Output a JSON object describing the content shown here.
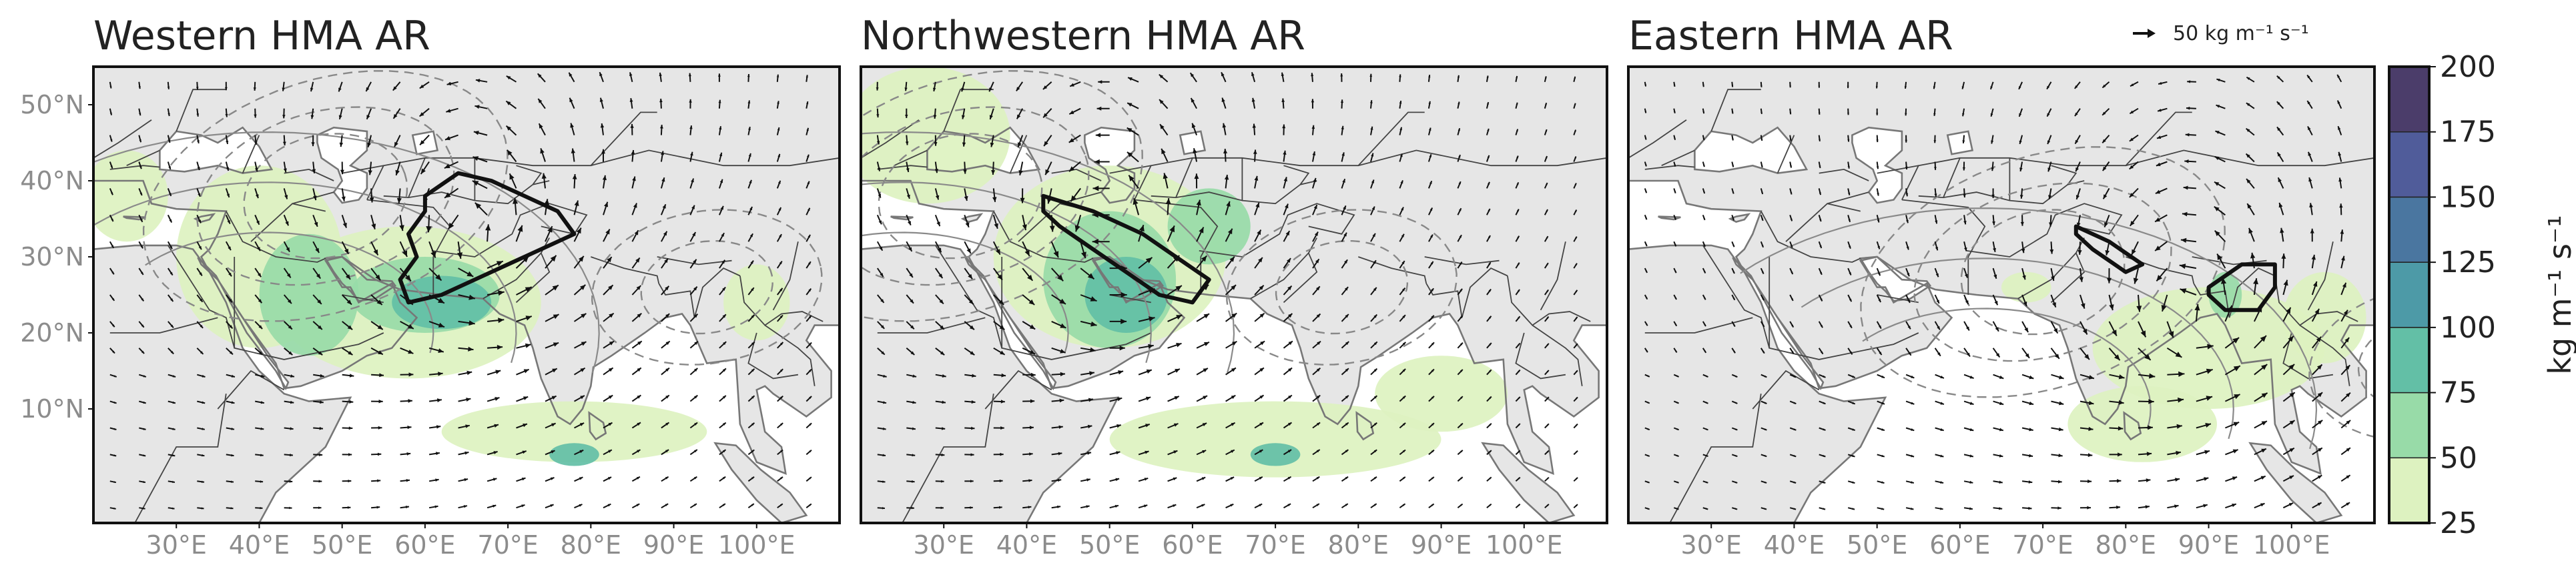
{
  "panels": [
    {
      "id": "western",
      "title": "Western HMA AR",
      "show_lat_labels": true,
      "ivt_blobs": [
        {
          "level": 25,
          "lon": 40,
          "lat": 30,
          "rx": 10,
          "ry": 12
        },
        {
          "level": 25,
          "lon": 58,
          "lat": 24,
          "rx": 16,
          "ry": 10
        },
        {
          "level": 25,
          "lon": 24,
          "lat": 38,
          "rx": 5,
          "ry": 6
        },
        {
          "level": 25,
          "lon": 78,
          "lat": 7,
          "rx": 16,
          "ry": 4
        },
        {
          "level": 25,
          "lon": 100,
          "lat": 24,
          "rx": 4,
          "ry": 5
        },
        {
          "level": 50,
          "lon": 46,
          "lat": 25,
          "rx": 6,
          "ry": 8
        },
        {
          "level": 50,
          "lon": 60,
          "lat": 25,
          "rx": 9,
          "ry": 5
        },
        {
          "level": 75,
          "lon": 62,
          "lat": 24,
          "rx": 6,
          "ry": 3.5
        },
        {
          "level": 75,
          "lon": 78,
          "lat": 4,
          "rx": 3,
          "ry": 1.5
        }
      ],
      "ar_outline": [
        [
          60,
          38
        ],
        [
          64,
          41
        ],
        [
          68,
          40
        ],
        [
          72,
          38
        ],
        [
          76,
          36
        ],
        [
          78,
          33
        ],
        [
          74,
          31
        ],
        [
          70,
          29
        ],
        [
          66,
          27
        ],
        [
          62,
          25
        ],
        [
          58,
          24
        ],
        [
          57,
          27
        ],
        [
          59,
          30
        ],
        [
          58,
          33
        ],
        [
          60,
          36
        ]
      ],
      "wind_center": [
        66,
        30
      ]
    },
    {
      "id": "northwestern",
      "title": "Northwestern HMA AR",
      "show_lat_labels": false,
      "ivt_blobs": [
        {
          "level": 25,
          "lon": 28,
          "lat": 46,
          "rx": 10,
          "ry": 9
        },
        {
          "level": 25,
          "lon": 50,
          "lat": 30,
          "rx": 14,
          "ry": 12
        },
        {
          "level": 25,
          "lon": 70,
          "lat": 6,
          "rx": 20,
          "ry": 5
        },
        {
          "level": 25,
          "lon": 90,
          "lat": 12,
          "rx": 8,
          "ry": 5
        },
        {
          "level": 50,
          "lon": 50,
          "lat": 27,
          "rx": 8,
          "ry": 9
        },
        {
          "level": 50,
          "lon": 62,
          "lat": 34,
          "rx": 5,
          "ry": 5
        },
        {
          "level": 75,
          "lon": 52,
          "lat": 25,
          "rx": 5,
          "ry": 5
        },
        {
          "level": 75,
          "lon": 70,
          "lat": 4,
          "rx": 3,
          "ry": 1.5
        }
      ],
      "ar_outline": [
        [
          42,
          38
        ],
        [
          48,
          36
        ],
        [
          54,
          33
        ],
        [
          58,
          30
        ],
        [
          62,
          27
        ],
        [
          60,
          24
        ],
        [
          56,
          25
        ],
        [
          52,
          28
        ],
        [
          48,
          31
        ],
        [
          44,
          34
        ],
        [
          42,
          36
        ]
      ],
      "wind_center": [
        50,
        30
      ]
    },
    {
      "id": "eastern",
      "title": "Eastern HMA AR",
      "show_lat_labels": false,
      "ivt_blobs": [
        {
          "level": 25,
          "lon": 68,
          "lat": 26,
          "rx": 3,
          "ry": 2
        },
        {
          "level": 25,
          "lon": 90,
          "lat": 18,
          "rx": 14,
          "ry": 8
        },
        {
          "level": 25,
          "lon": 82,
          "lat": 8,
          "rx": 9,
          "ry": 5
        },
        {
          "level": 25,
          "lon": 104,
          "lat": 22,
          "rx": 5,
          "ry": 6
        },
        {
          "level": 50,
          "lon": 92,
          "lat": 25,
          "rx": 2,
          "ry": 3
        }
      ],
      "ar_outline": [
        [
          74,
          34
        ],
        [
          78,
          32
        ],
        [
          82,
          29
        ],
        [
          80,
          28
        ],
        [
          76,
          31
        ],
        [
          74,
          33
        ]
      ],
      "ar_outline_2": [
        [
          90,
          26
        ],
        [
          94,
          29
        ],
        [
          98,
          29
        ],
        [
          98,
          26
        ],
        [
          96,
          23
        ],
        [
          92,
          23
        ],
        [
          90,
          25
        ]
      ],
      "wind_center": [
        88,
        20
      ]
    }
  ],
  "lat_ticks": [
    "10°N",
    "20°N",
    "30°N",
    "40°N",
    "50°N"
  ],
  "lon_ticks": [
    "30°E",
    "40°E",
    "50°E",
    "60°E",
    "70°E",
    "80°E",
    "90°E",
    "100°E"
  ],
  "reference_vector": {
    "label": "50 kg m⁻¹ s⁻¹"
  },
  "colorbar": {
    "label": "kg m⁻¹ s⁻¹",
    "ticks": [
      "25",
      "50",
      "75",
      "100",
      "125",
      "150",
      "175",
      "200"
    ],
    "colors": [
      "#ddf2c0",
      "#98dba8",
      "#63bfa6",
      "#4d9aa7",
      "#4a76a0",
      "#505c9a",
      "#4b3d6a"
    ]
  },
  "colors": {
    "land": "#e6e6e6",
    "ocean": "#ffffff",
    "coast": "#777777",
    "border": "#444444",
    "ar_outline": "#111111"
  }
}
